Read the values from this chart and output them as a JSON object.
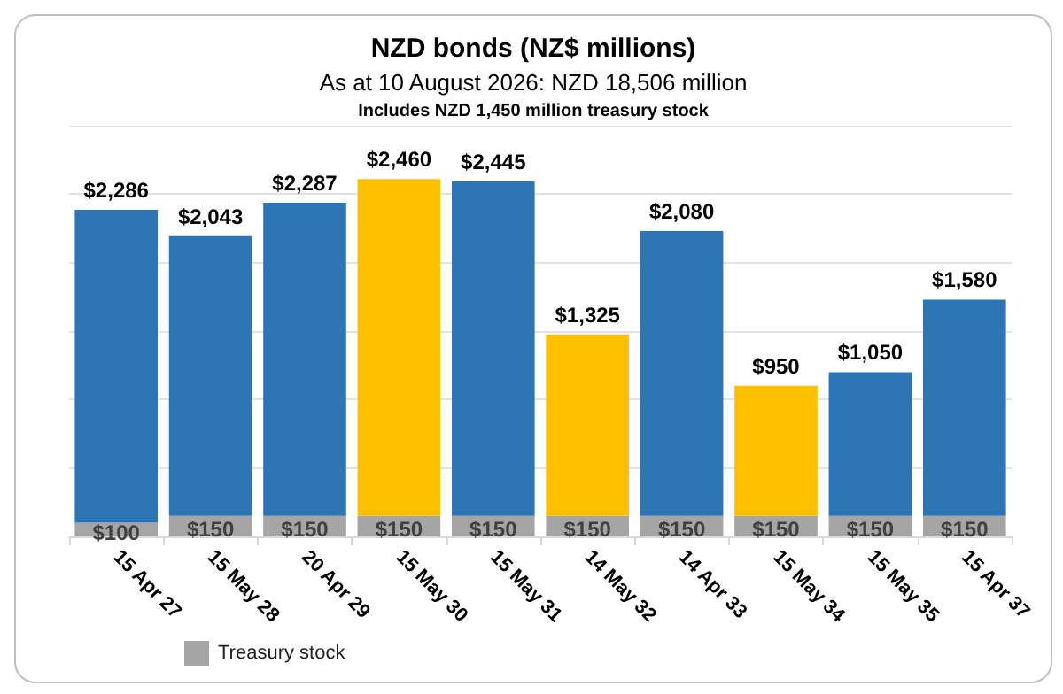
{
  "chart_data": {
    "type": "bar",
    "title": "NZD bonds (NZ$ millions)",
    "subtitle": "As at 10 August 2026: NZD 18,506 million",
    "annotations": [
      "Includes NZD 1,450 million treasury stock"
    ],
    "categories": [
      "15 Apr 27",
      "15 May 28",
      "20 Apr 29",
      "15 May 30",
      "15 May 31",
      "14 May 32",
      "14 Apr 33",
      "15 May 34",
      "15 May 35",
      "15 Apr 37"
    ],
    "stacked": true,
    "series": [
      {
        "name": "Treasury stock",
        "color": "#a5a5a5",
        "values": [
          100,
          150,
          150,
          150,
          150,
          150,
          150,
          150,
          150,
          150
        ],
        "value_labels": [
          "$100",
          "$150",
          "$150",
          "$150",
          "$150",
          "$150",
          "$150",
          "$150",
          "$150",
          "$150"
        ]
      },
      {
        "colors": [
          "#2e75b6",
          "#2e75b6",
          "#2e75b6",
          "#ffc000",
          "#2e75b6",
          "#ffc000",
          "#2e75b6",
          "#ffc000",
          "#2e75b6",
          "#2e75b6"
        ],
        "values": [
          2286,
          2043,
          2287,
          2460,
          2445,
          1325,
          2080,
          950,
          1050,
          1580
        ],
        "value_labels": [
          "$2,286",
          "$2,043",
          "$2,287",
          "$2,460",
          "$2,445",
          "$1,325",
          "$2,080",
          "$950",
          "$1,050",
          "$1,580"
        ]
      }
    ],
    "ylim": [
      0,
      3000
    ],
    "yticks": [
      {
        "value": 0,
        "label": null
      },
      {
        "value": 500,
        "label": null
      },
      {
        "value": 1000,
        "label": null
      },
      {
        "value": 1500,
        "label": null
      },
      {
        "value": 2000,
        "label": null
      },
      {
        "value": 2500,
        "label": null
      },
      {
        "value": 3000,
        "label": null
      }
    ],
    "tick_labels": "x",
    "grid": "y",
    "legend": "bottom left"
  }
}
